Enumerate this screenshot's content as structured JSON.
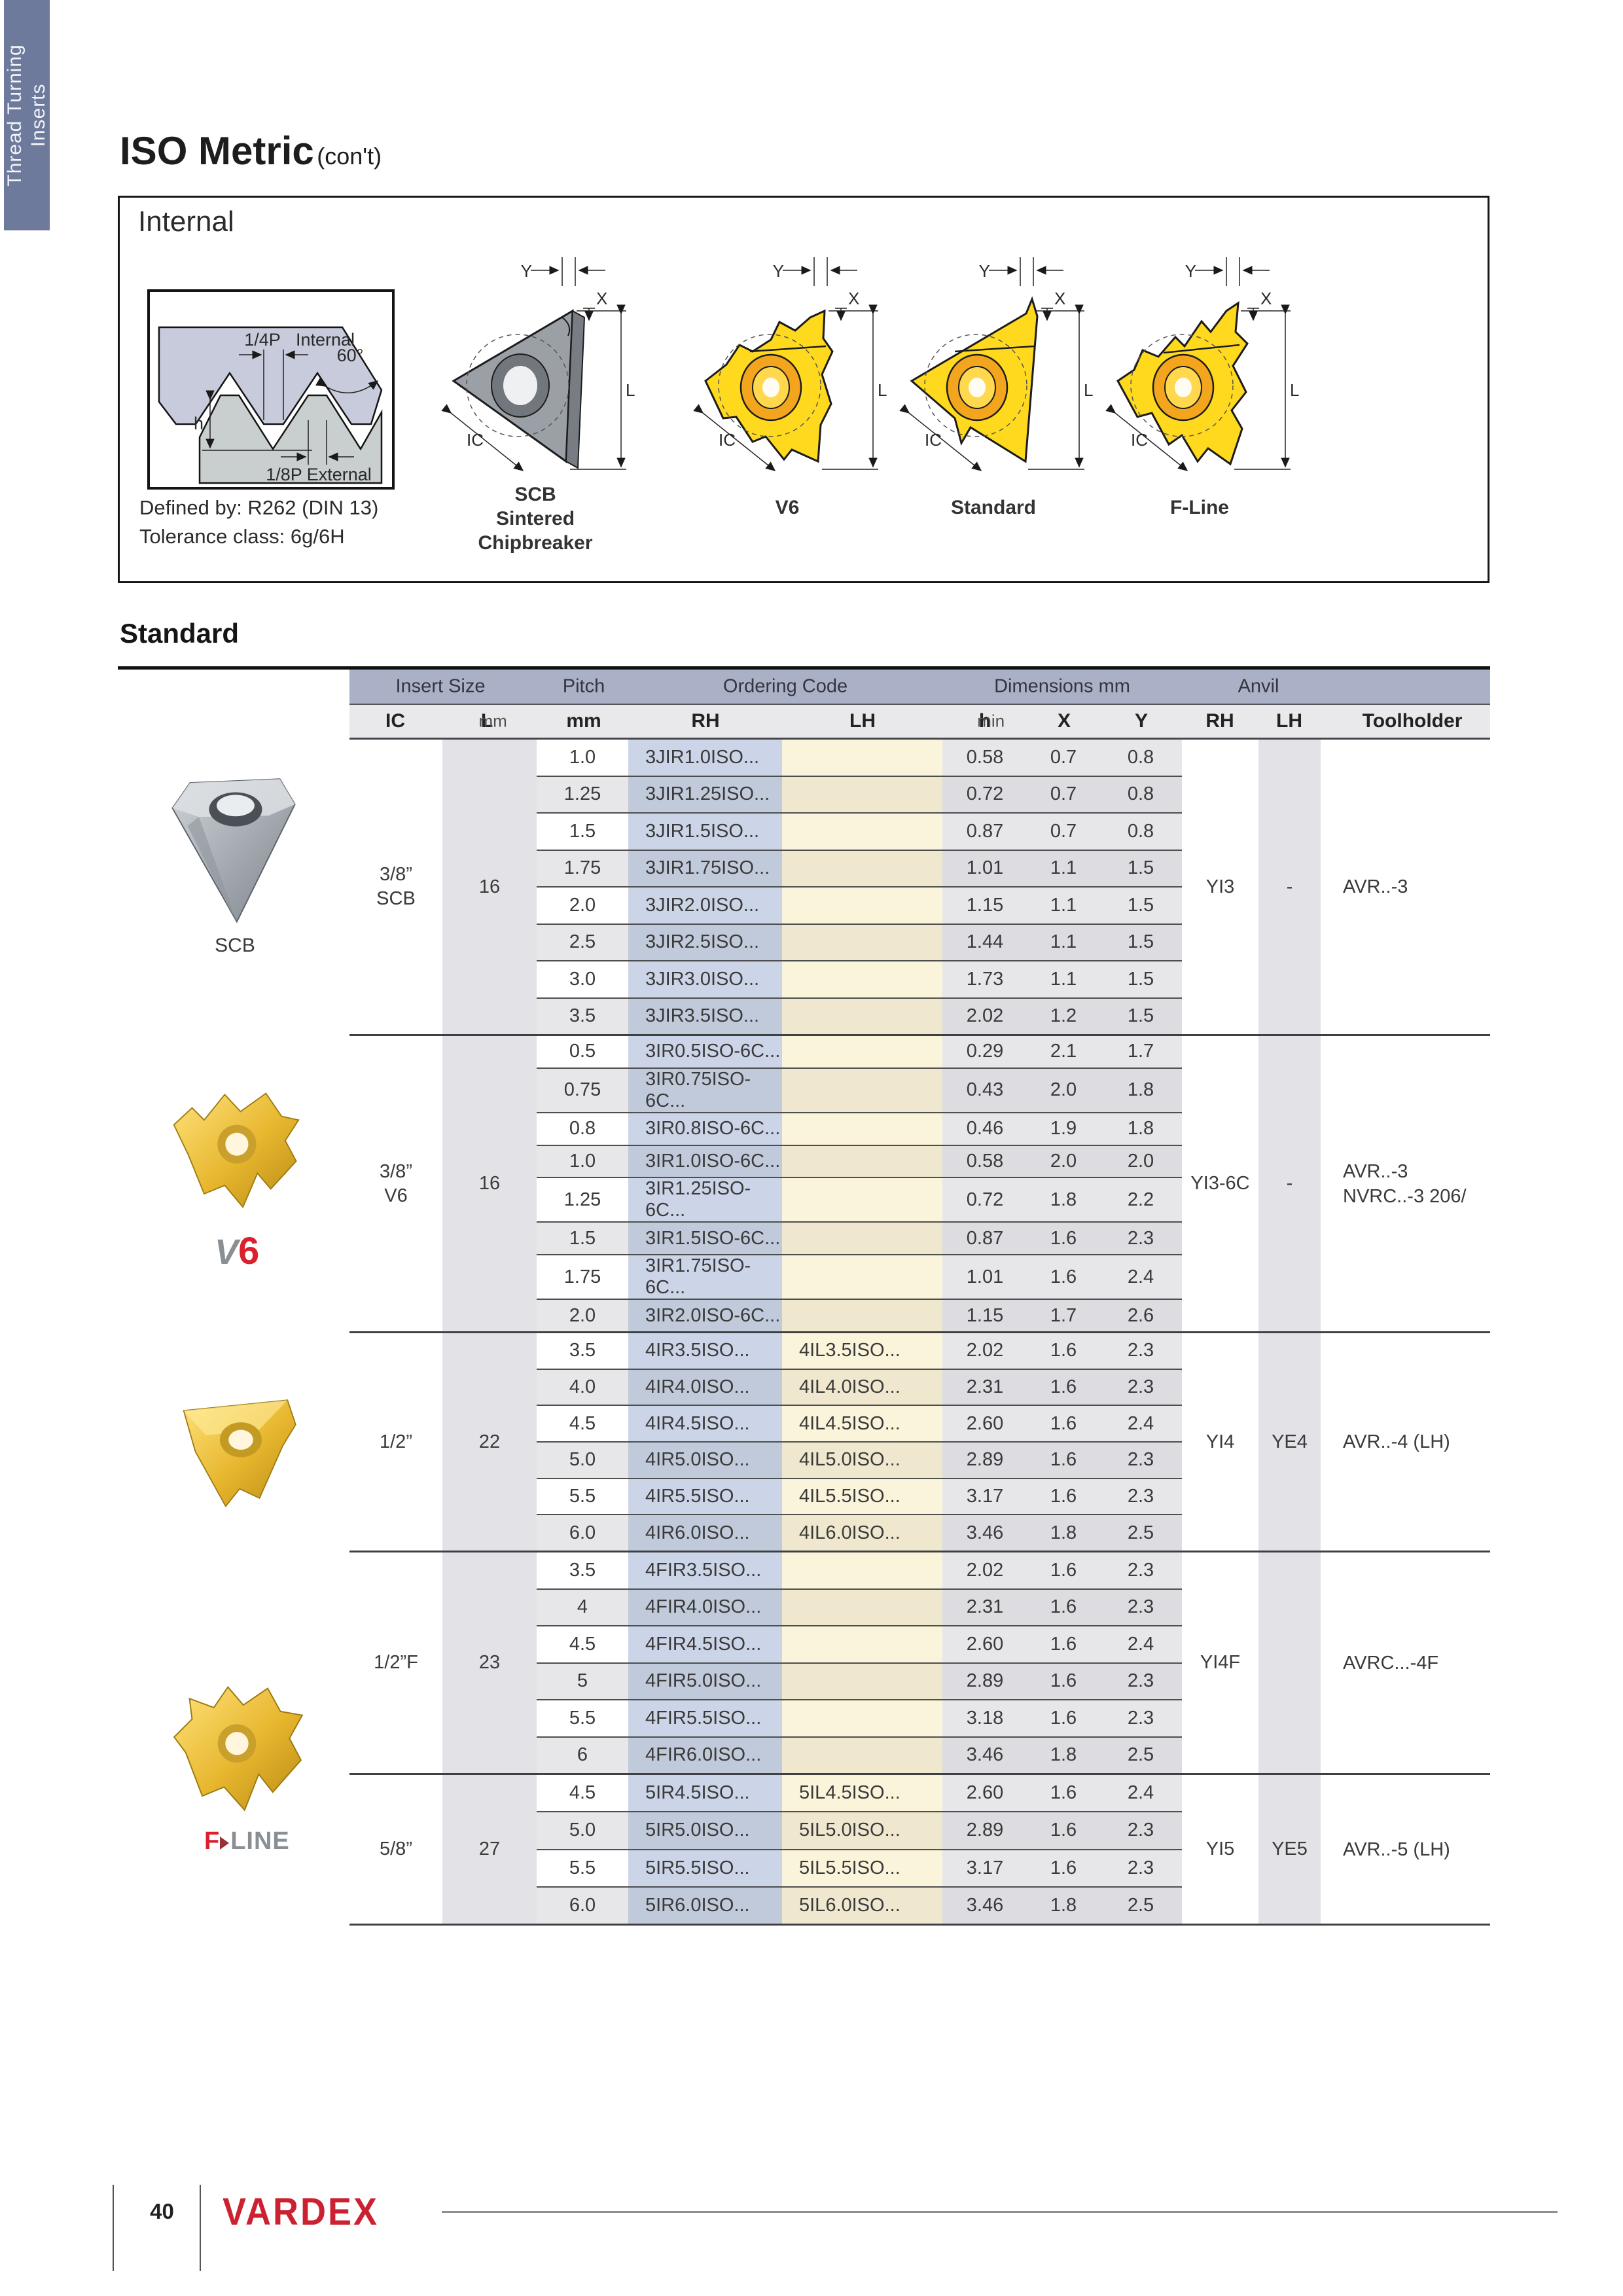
{
  "sidebar": {
    "line1": "Thread Turning",
    "line2": "Inserts"
  },
  "header": {
    "title": "ISO Metric",
    "subtitle": "(con't)"
  },
  "internal": {
    "heading": "Internal",
    "defined_by": "Defined by: R262 (DIN 13)",
    "tolerance": "Tolerance class: 6g/6H",
    "profile": {
      "quarter_p": "1/4P",
      "internal_label": "Internal",
      "angle": "60°",
      "h": "h",
      "eighth_p": "1/8P External"
    },
    "dims": {
      "y": "Y",
      "x": "X",
      "l": "L",
      "ic": "IC"
    },
    "variants": [
      {
        "lines": [
          "SCB",
          "Sintered",
          "Chipbreaker"
        ]
      },
      {
        "lines": [
          "V6"
        ]
      },
      {
        "lines": [
          "Standard"
        ]
      },
      {
        "lines": [
          "F-Line"
        ]
      }
    ]
  },
  "section": {
    "heading": "Standard"
  },
  "table": {
    "header1": {
      "insert_size": "Insert Size",
      "pitch": "Pitch",
      "ordering_code": "Ordering Code",
      "dimensions": "Dimensions mm",
      "anvil": "Anvil"
    },
    "header2": {
      "ic": "IC",
      "l": "L",
      "l_unit": "mm",
      "pitch_unit": "mm",
      "rh": "RH",
      "lh": "LH",
      "h": "h",
      "h_unit": "min",
      "x": "X",
      "y": "Y",
      "anvil_rh": "RH",
      "anvil_lh": "LH",
      "toolholder": "Toolholder"
    },
    "groups": [
      {
        "ic": [
          "3/8”",
          "SCB"
        ],
        "l": "16",
        "anvil_rh": "YI3",
        "anvil_lh": "-",
        "toolholder": [
          "AVR..-3"
        ],
        "rows": [
          {
            "pitch": "1.0",
            "rh": "3JIR1.0ISO...",
            "lh": "",
            "h": "0.58",
            "x": "0.7",
            "y": "0.8"
          },
          {
            "pitch": "1.25",
            "rh": "3JIR1.25ISO...",
            "lh": "",
            "h": "0.72",
            "x": "0.7",
            "y": "0.8"
          },
          {
            "pitch": "1.5",
            "rh": "3JIR1.5ISO...",
            "lh": "",
            "h": "0.87",
            "x": "0.7",
            "y": "0.8"
          },
          {
            "pitch": "1.75",
            "rh": "3JIR1.75ISO...",
            "lh": "",
            "h": "1.01",
            "x": "1.1",
            "y": "1.5"
          },
          {
            "pitch": "2.0",
            "rh": "3JIR2.0ISO...",
            "lh": "",
            "h": "1.15",
            "x": "1.1",
            "y": "1.5"
          },
          {
            "pitch": "2.5",
            "rh": "3JIR2.5ISO...",
            "lh": "",
            "h": "1.44",
            "x": "1.1",
            "y": "1.5"
          },
          {
            "pitch": "3.0",
            "rh": "3JIR3.0ISO...",
            "lh": "",
            "h": "1.73",
            "x": "1.1",
            "y": "1.5"
          },
          {
            "pitch": "3.5",
            "rh": "3JIR3.5ISO...",
            "lh": "",
            "h": "2.02",
            "x": "1.2",
            "y": "1.5"
          }
        ]
      },
      {
        "ic": [
          "3/8”",
          "V6"
        ],
        "l": "16",
        "anvil_rh": "YI3-6C",
        "anvil_lh": "-",
        "toolholder": [
          "AVR..-3",
          "NVRC..-3 206/"
        ],
        "rows": [
          {
            "pitch": "0.5",
            "rh": "3IR0.5ISO-6C...",
            "lh": "",
            "h": "0.29",
            "x": "2.1",
            "y": "1.7"
          },
          {
            "pitch": "0.75",
            "rh": "3IR0.75ISO-6C...",
            "lh": "",
            "h": "0.43",
            "x": "2.0",
            "y": "1.8"
          },
          {
            "pitch": "0.8",
            "rh": "3IR0.8ISO-6C...",
            "lh": "",
            "h": "0.46",
            "x": "1.9",
            "y": "1.8"
          },
          {
            "pitch": "1.0",
            "rh": "3IR1.0ISO-6C...",
            "lh": "",
            "h": "0.58",
            "x": "2.0",
            "y": "2.0"
          },
          {
            "pitch": "1.25",
            "rh": "3IR1.25ISO-6C...",
            "lh": "",
            "h": "0.72",
            "x": "1.8",
            "y": "2.2"
          },
          {
            "pitch": "1.5",
            "rh": "3IR1.5ISO-6C...",
            "lh": "",
            "h": "0.87",
            "x": "1.6",
            "y": "2.3"
          },
          {
            "pitch": "1.75",
            "rh": "3IR1.75ISO-6C...",
            "lh": "",
            "h": "1.01",
            "x": "1.6",
            "y": "2.4"
          },
          {
            "pitch": "2.0",
            "rh": "3IR2.0ISO-6C...",
            "lh": "",
            "h": "1.15",
            "x": "1.7",
            "y": "2.6"
          }
        ]
      },
      {
        "ic": [
          "1/2”"
        ],
        "l": "22",
        "anvil_rh": "YI4",
        "anvil_lh": "YE4",
        "toolholder": [
          "AVR..-4 (LH)"
        ],
        "rows": [
          {
            "pitch": "3.5",
            "rh": "4IR3.5ISO...",
            "lh": "4IL3.5ISO...",
            "h": "2.02",
            "x": "1.6",
            "y": "2.3"
          },
          {
            "pitch": "4.0",
            "rh": "4IR4.0ISO...",
            "lh": "4IL4.0ISO...",
            "h": "2.31",
            "x": "1.6",
            "y": "2.3"
          },
          {
            "pitch": "4.5",
            "rh": "4IR4.5ISO...",
            "lh": "4IL4.5ISO...",
            "h": "2.60",
            "x": "1.6",
            "y": "2.4"
          },
          {
            "pitch": "5.0",
            "rh": "4IR5.0ISO...",
            "lh": "4IL5.0ISO...",
            "h": "2.89",
            "x": "1.6",
            "y": "2.3"
          },
          {
            "pitch": "5.5",
            "rh": "4IR5.5ISO...",
            "lh": "4IL5.5ISO...",
            "h": "3.17",
            "x": "1.6",
            "y": "2.3"
          },
          {
            "pitch": "6.0",
            "rh": "4IR6.0ISO...",
            "lh": "4IL6.0ISO...",
            "h": "3.46",
            "x": "1.8",
            "y": "2.5"
          }
        ]
      },
      {
        "ic": [
          "1/2”F"
        ],
        "l": "23",
        "anvil_rh": "YI4F",
        "anvil_lh": "",
        "toolholder": [
          "AVRC...-4F"
        ],
        "rows": [
          {
            "pitch": "3.5",
            "rh": "4FIR3.5ISO...",
            "lh": "",
            "h": "2.02",
            "x": "1.6",
            "y": "2.3"
          },
          {
            "pitch": "4",
            "rh": "4FIR4.0ISO...",
            "lh": "",
            "h": "2.31",
            "x": "1.6",
            "y": "2.3"
          },
          {
            "pitch": "4.5",
            "rh": "4FIR4.5ISO...",
            "lh": "",
            "h": "2.60",
            "x": "1.6",
            "y": "2.4"
          },
          {
            "pitch": "5",
            "rh": "4FIR5.0ISO...",
            "lh": "",
            "h": "2.89",
            "x": "1.6",
            "y": "2.3"
          },
          {
            "pitch": "5.5",
            "rh": "4FIR5.5ISO...",
            "lh": "",
            "h": "3.18",
            "x": "1.6",
            "y": "2.3"
          },
          {
            "pitch": "6",
            "rh": "4FIR6.0ISO...",
            "lh": "",
            "h": "3.46",
            "x": "1.8",
            "y": "2.5"
          }
        ]
      },
      {
        "ic": [
          "5/8”"
        ],
        "l": "27",
        "anvil_rh": "YI5",
        "anvil_lh": "YE5",
        "toolholder": [
          "AVR..-5 (LH)"
        ],
        "rows": [
          {
            "pitch": "4.5",
            "rh": "5IR4.5ISO...",
            "lh": "5IL4.5ISO...",
            "h": "2.60",
            "x": "1.6",
            "y": "2.4"
          },
          {
            "pitch": "5.0",
            "rh": "5IR5.0ISO...",
            "lh": "5IL5.0ISO...",
            "h": "2.89",
            "x": "1.6",
            "y": "2.3"
          },
          {
            "pitch": "5.5",
            "rh": "5IR5.5ISO...",
            "lh": "5IL5.5ISO...",
            "h": "3.17",
            "x": "1.6",
            "y": "2.3"
          },
          {
            "pitch": "6.0",
            "rh": "5IR6.0ISO...",
            "lh": "5IL6.0ISO...",
            "h": "3.46",
            "x": "1.8",
            "y": "2.5"
          }
        ]
      }
    ]
  },
  "photos": {
    "scb_caption": "SCB"
  },
  "logos": {
    "v6_v": "V",
    "v6_6": "6",
    "fline_f": "F",
    "fline_line": "LINE"
  },
  "footer": {
    "page_number": "40",
    "brand": "VARDEX"
  }
}
